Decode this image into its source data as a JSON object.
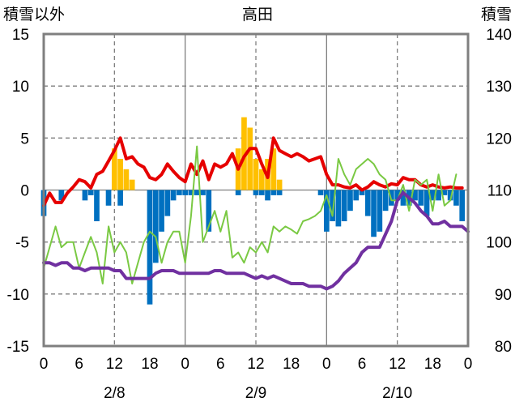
{
  "chart_data": {
    "type": "bar+line",
    "title": "高田",
    "left_axis": {
      "label": "積雪以外",
      "range": [
        -15,
        15
      ],
      "ticks": [
        "15",
        "10",
        "5",
        "0",
        "-5",
        "-10",
        "-15"
      ]
    },
    "right_axis": {
      "label": "積雪",
      "range": [
        80,
        140
      ],
      "ticks": [
        "140",
        "130",
        "120",
        "110",
        "100",
        "90",
        "80"
      ]
    },
    "x_axis": {
      "range": [
        0,
        72
      ],
      "ticks": [
        {
          "x": 0,
          "label": "0"
        },
        {
          "x": 6,
          "label": "6"
        },
        {
          "x": 12,
          "label": "12"
        },
        {
          "x": 18,
          "label": "18"
        },
        {
          "x": 24,
          "label": "0"
        },
        {
          "x": 30,
          "label": "6"
        },
        {
          "x": 36,
          "label": "12"
        },
        {
          "x": 42,
          "label": "18"
        },
        {
          "x": 48,
          "label": "0"
        },
        {
          "x": 54,
          "label": "6"
        },
        {
          "x": 60,
          "label": "12"
        },
        {
          "x": 66,
          "label": "18"
        },
        {
          "x": 72,
          "label": "0"
        }
      ],
      "dates": [
        {
          "x": 12,
          "label": "2/8"
        },
        {
          "x": 36,
          "label": "2/9"
        },
        {
          "x": 60,
          "label": "2/10"
        }
      ],
      "day_dividers": [
        24,
        48
      ],
      "dashed_gridlines": [
        12,
        36,
        60
      ],
      "dashed_h_gridlines": [
        10,
        5,
        -5,
        -10
      ]
    },
    "bars_orange": [
      {
        "x": 12,
        "v": 4
      },
      {
        "x": 13,
        "v": 3
      },
      {
        "x": 14,
        "v": 2
      },
      {
        "x": 15,
        "v": 1
      },
      {
        "x": 33,
        "v": 4
      },
      {
        "x": 34,
        "v": 7
      },
      {
        "x": 35,
        "v": 6
      },
      {
        "x": 36,
        "v": 3
      },
      {
        "x": 37,
        "v": 2
      },
      {
        "x": 38,
        "v": 3
      },
      {
        "x": 39,
        "v": 4
      },
      {
        "x": 40,
        "v": 1
      }
    ],
    "bars_blue": [
      {
        "x": 0,
        "v": -2.5
      },
      {
        "x": 3,
        "v": -1
      },
      {
        "x": 7,
        "v": -1
      },
      {
        "x": 8,
        "v": -0.5
      },
      {
        "x": 9,
        "v": -3
      },
      {
        "x": 11,
        "v": -1.5
      },
      {
        "x": 13,
        "v": -1.5
      },
      {
        "x": 18,
        "v": -11
      },
      {
        "x": 19,
        "v": -7
      },
      {
        "x": 20,
        "v": -4
      },
      {
        "x": 21,
        "v": -2.5
      },
      {
        "x": 22,
        "v": -1
      },
      {
        "x": 23,
        "v": -0.5
      },
      {
        "x": 24,
        "v": -0.5
      },
      {
        "x": 25,
        "v": -0.5
      },
      {
        "x": 26,
        "v": -0.5
      },
      {
        "x": 27,
        "v": -0.5
      },
      {
        "x": 28,
        "v": -4
      },
      {
        "x": 33,
        "v": -0.5
      },
      {
        "x": 36,
        "v": -0.5
      },
      {
        "x": 37,
        "v": -0.5
      },
      {
        "x": 38,
        "v": -1
      },
      {
        "x": 39,
        "v": -0.5
      },
      {
        "x": 40,
        "v": -0.5
      },
      {
        "x": 47,
        "v": -0.5
      },
      {
        "x": 48,
        "v": -4
      },
      {
        "x": 49,
        "v": -3
      },
      {
        "x": 50,
        "v": -3.5
      },
      {
        "x": 51,
        "v": -3
      },
      {
        "x": 52,
        "v": -2
      },
      {
        "x": 53,
        "v": -1
      },
      {
        "x": 54,
        "v": -0.5
      },
      {
        "x": 55,
        "v": -2.5
      },
      {
        "x": 56,
        "v": -4.5
      },
      {
        "x": 57,
        "v": -4
      },
      {
        "x": 58,
        "v": -2
      },
      {
        "x": 59,
        "v": -1.5
      },
      {
        "x": 60,
        "v": -1
      },
      {
        "x": 61,
        "v": -1.5
      },
      {
        "x": 62,
        "v": -1.5
      },
      {
        "x": 63,
        "v": -1
      },
      {
        "x": 64,
        "v": -1.5
      },
      {
        "x": 65,
        "v": -2.5
      },
      {
        "x": 66,
        "v": -1
      },
      {
        "x": 67,
        "v": -1
      },
      {
        "x": 68,
        "v": -0.5
      },
      {
        "x": 69,
        "v": -1
      },
      {
        "x": 70,
        "v": -1.5
      },
      {
        "x": 71,
        "v": -3
      }
    ],
    "series": [
      {
        "color": "#e60000",
        "axis": "left",
        "width": 4,
        "points": [
          [
            0,
            -1.5
          ],
          [
            1,
            -0.3
          ],
          [
            2,
            -1.2
          ],
          [
            3,
            -1.2
          ],
          [
            4,
            -0.3
          ],
          [
            5,
            0.3
          ],
          [
            6,
            1
          ],
          [
            7,
            0.8
          ],
          [
            8,
            0.2
          ],
          [
            9,
            1.5
          ],
          [
            10,
            1.8
          ],
          [
            11,
            2.8
          ],
          [
            12,
            3.8
          ],
          [
            13,
            5
          ],
          [
            14,
            3
          ],
          [
            15,
            3.2
          ],
          [
            16,
            2.5
          ],
          [
            17,
            2.2
          ],
          [
            18,
            1.2
          ],
          [
            19,
            1
          ],
          [
            20,
            1.5
          ],
          [
            21,
            2.5
          ],
          [
            22,
            1.8
          ],
          [
            23,
            1.2
          ],
          [
            24,
            0.8
          ],
          [
            25,
            2.5
          ],
          [
            26,
            1.5
          ],
          [
            27,
            2.8
          ],
          [
            28,
            1
          ],
          [
            29,
            2.5
          ],
          [
            30,
            2.2
          ],
          [
            31,
            2.5
          ],
          [
            32,
            3.5
          ],
          [
            33,
            2
          ],
          [
            34,
            3.2
          ],
          [
            35,
            4
          ],
          [
            36,
            4
          ],
          [
            37,
            2.5
          ],
          [
            38,
            1.2
          ],
          [
            39,
            5
          ],
          [
            40,
            3.8
          ],
          [
            41,
            3.5
          ],
          [
            42,
            3.2
          ],
          [
            43,
            3.5
          ],
          [
            44,
            3.2
          ],
          [
            45,
            2.8
          ],
          [
            46,
            3
          ],
          [
            47,
            3.2
          ],
          [
            48,
            1.5
          ],
          [
            49,
            0.5
          ],
          [
            50,
            0.5
          ],
          [
            51,
            0.3
          ],
          [
            52,
            0.2
          ],
          [
            53,
            0.5
          ],
          [
            54,
            0
          ],
          [
            55,
            0.3
          ],
          [
            56,
            0.8
          ],
          [
            57,
            0.5
          ],
          [
            58,
            0.3
          ],
          [
            59,
            0.6
          ],
          [
            60,
            0.5
          ],
          [
            61,
            1.2
          ],
          [
            62,
            1
          ],
          [
            63,
            1
          ],
          [
            64,
            0.5
          ],
          [
            65,
            0.3
          ],
          [
            66,
            0.5
          ],
          [
            67,
            0.3
          ],
          [
            68,
            0.2
          ],
          [
            69,
            0.3
          ],
          [
            70,
            0.2
          ],
          [
            71,
            0.2
          ]
        ]
      },
      {
        "color": "#7ac943",
        "axis": "left",
        "width": 2,
        "points": [
          [
            0,
            -7.5
          ],
          [
            1,
            -5.5
          ],
          [
            2,
            -3.5
          ],
          [
            3,
            -5.5
          ],
          [
            4,
            -5
          ],
          [
            5,
            -5
          ],
          [
            6,
            -7.5
          ],
          [
            7,
            -6
          ],
          [
            8,
            -4.5
          ],
          [
            9,
            -6
          ],
          [
            10,
            -9
          ],
          [
            11,
            -3.5
          ],
          [
            12,
            -6
          ],
          [
            13,
            -5
          ],
          [
            14,
            -6
          ],
          [
            15,
            -9
          ],
          [
            16,
            -7
          ],
          [
            17,
            -5
          ],
          [
            18,
            -4
          ],
          [
            19,
            -4.5
          ],
          [
            20,
            -7
          ],
          [
            21,
            -5
          ],
          [
            22,
            -4
          ],
          [
            23,
            -4
          ],
          [
            24,
            -7
          ],
          [
            25,
            -2.5
          ],
          [
            26,
            4.2
          ],
          [
            27,
            -5
          ],
          [
            28,
            -3.5
          ],
          [
            29,
            -2
          ],
          [
            30,
            -4
          ],
          [
            31,
            -2
          ],
          [
            32,
            -6.5
          ],
          [
            33,
            -6
          ],
          [
            34,
            -7
          ],
          [
            35,
            -5.5
          ],
          [
            36,
            -6
          ],
          [
            37,
            -5
          ],
          [
            38,
            -6
          ],
          [
            39,
            -3.5
          ],
          [
            40,
            -4
          ],
          [
            41,
            -3.5
          ],
          [
            42,
            -3.8
          ],
          [
            43,
            -4.2
          ],
          [
            44,
            -3
          ],
          [
            45,
            -2.8
          ],
          [
            46,
            -2.5
          ],
          [
            47,
            -2
          ],
          [
            48,
            -0.5
          ],
          [
            49,
            -2.5
          ],
          [
            50,
            3
          ],
          [
            51,
            1.5
          ],
          [
            52,
            0.5
          ],
          [
            53,
            2
          ],
          [
            54,
            2.5
          ],
          [
            55,
            3
          ],
          [
            56,
            2.5
          ],
          [
            57,
            1.5
          ],
          [
            58,
            1
          ],
          [
            59,
            -1
          ],
          [
            60,
            -1
          ],
          [
            61,
            0.5
          ],
          [
            62,
            -2
          ],
          [
            63,
            1
          ],
          [
            64,
            0.5
          ],
          [
            65,
            1
          ],
          [
            66,
            -2
          ],
          [
            67,
            1.5
          ],
          [
            68,
            -1.5
          ],
          [
            69,
            -1
          ],
          [
            70,
            1.5
          ]
        ]
      },
      {
        "color": "#7030a0",
        "axis": "right",
        "width": 4,
        "points": [
          [
            0,
            96
          ],
          [
            1,
            96
          ],
          [
            2,
            95.5
          ],
          [
            3,
            96
          ],
          [
            4,
            96
          ],
          [
            5,
            95
          ],
          [
            6,
            95
          ],
          [
            7,
            94.5
          ],
          [
            8,
            95
          ],
          [
            9,
            95
          ],
          [
            10,
            95
          ],
          [
            11,
            95
          ],
          [
            12,
            94.5
          ],
          [
            13,
            94.5
          ],
          [
            14,
            93
          ],
          [
            15,
            93
          ],
          [
            16,
            93
          ],
          [
            17,
            93
          ],
          [
            18,
            93
          ],
          [
            19,
            94
          ],
          [
            20,
            94.5
          ],
          [
            21,
            94.5
          ],
          [
            22,
            94.5
          ],
          [
            23,
            94
          ],
          [
            24,
            94
          ],
          [
            25,
            94
          ],
          [
            26,
            94
          ],
          [
            27,
            94
          ],
          [
            28,
            94
          ],
          [
            29,
            94.5
          ],
          [
            30,
            94.5
          ],
          [
            31,
            94
          ],
          [
            32,
            94
          ],
          [
            33,
            94
          ],
          [
            34,
            94
          ],
          [
            35,
            93.5
          ],
          [
            36,
            93
          ],
          [
            37,
            93.5
          ],
          [
            38,
            93
          ],
          [
            39,
            93.5
          ],
          [
            40,
            93
          ],
          [
            41,
            92.5
          ],
          [
            42,
            92
          ],
          [
            43,
            92
          ],
          [
            44,
            92
          ],
          [
            45,
            91.5
          ],
          [
            46,
            91.5
          ],
          [
            47,
            91.5
          ],
          [
            48,
            91
          ],
          [
            49,
            91.5
          ],
          [
            50,
            92.5
          ],
          [
            51,
            94
          ],
          [
            52,
            95
          ],
          [
            53,
            96
          ],
          [
            54,
            98
          ],
          [
            55,
            99
          ],
          [
            56,
            99
          ],
          [
            57,
            99
          ],
          [
            58,
            101.5
          ],
          [
            59,
            104
          ],
          [
            60,
            108
          ],
          [
            61,
            109.5
          ],
          [
            62,
            108.5
          ],
          [
            63,
            107.5
          ],
          [
            64,
            106
          ],
          [
            65,
            105
          ],
          [
            66,
            103.5
          ],
          [
            67,
            103.5
          ],
          [
            68,
            104
          ],
          [
            69,
            103
          ],
          [
            70,
            103
          ],
          [
            71,
            103
          ],
          [
            72,
            102
          ]
        ]
      }
    ]
  }
}
